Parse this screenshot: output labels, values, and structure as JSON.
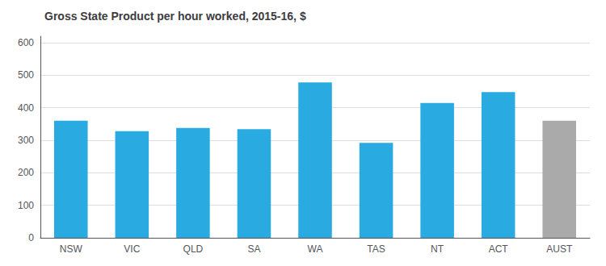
{
  "chart_data": {
    "type": "bar",
    "title": "Gross State Product per hour worked, 2015-16, $",
    "categories": [
      "NSW",
      "VIC",
      "QLD",
      "SA",
      "WA",
      "TAS",
      "NT",
      "ACT",
      "AUST"
    ],
    "values": [
      360,
      328,
      338,
      334,
      478,
      292,
      415,
      448,
      360
    ],
    "colors": [
      "#29ABE2",
      "#29ABE2",
      "#29ABE2",
      "#29ABE2",
      "#29ABE2",
      "#29ABE2",
      "#29ABE2",
      "#29ABE2",
      "#AAAAAA"
    ],
    "ylim": [
      0,
      620
    ],
    "yticks": [
      0,
      100,
      200,
      300,
      400,
      500,
      600
    ],
    "grid": true
  }
}
